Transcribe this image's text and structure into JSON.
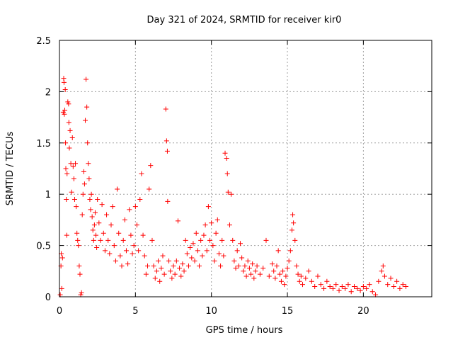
{
  "chart_data": {
    "type": "scatter",
    "title": "Day 321 of 2024, SRMTID for receiver kir0",
    "xlabel": "GPS time / hours",
    "ylabel": "SRMTID / TECUs",
    "xlim": [
      0,
      24.5
    ],
    "ylim": [
      0,
      2.5
    ],
    "x_ticks": [
      0,
      5,
      10,
      15,
      20
    ],
    "x_tick_labels": [
      "0",
      "5",
      "10",
      "15",
      "20"
    ],
    "y_ticks": [
      0,
      0.5,
      1,
      1.5,
      2,
      2.5
    ],
    "y_tick_labels": [
      "0",
      "0.5",
      "1",
      "1.5",
      "2",
      "2.5"
    ],
    "grid": true,
    "marker": "+",
    "color": "#ff0000",
    "series": [
      {
        "name": "SRMTID",
        "points": [
          [
            0.05,
            0.02
          ],
          [
            0.1,
            0.3
          ],
          [
            0.12,
            0.42
          ],
          [
            0.15,
            0.08
          ],
          [
            0.2,
            0.38
          ],
          [
            0.25,
            1.8
          ],
          [
            0.28,
            2.13
          ],
          [
            0.3,
            2.09
          ],
          [
            0.32,
            1.78
          ],
          [
            0.35,
            1.82
          ],
          [
            0.38,
            2.02
          ],
          [
            0.4,
            1.5
          ],
          [
            0.42,
            1.25
          ],
          [
            0.45,
            0.95
          ],
          [
            0.48,
            0.6
          ],
          [
            0.5,
            1.2
          ],
          [
            0.55,
            1.9
          ],
          [
            0.6,
            1.88
          ],
          [
            0.62,
            1.7
          ],
          [
            0.65,
            1.45
          ],
          [
            0.7,
            1.62
          ],
          [
            0.75,
            1.3
          ],
          [
            0.8,
            1.02
          ],
          [
            0.85,
            1.55
          ],
          [
            0.9,
            1.27
          ],
          [
            0.95,
            1.15
          ],
          [
            1.0,
            0.95
          ],
          [
            1.05,
            1.3
          ],
          [
            1.1,
            0.88
          ],
          [
            1.15,
            0.62
          ],
          [
            1.2,
            0.55
          ],
          [
            1.25,
            0.5
          ],
          [
            1.3,
            0.3
          ],
          [
            1.35,
            0.22
          ],
          [
            1.4,
            0.02
          ],
          [
            1.45,
            0.04
          ],
          [
            1.5,
            0.8
          ],
          [
            1.55,
            1.0
          ],
          [
            1.6,
            1.22
          ],
          [
            1.65,
            1.1
          ],
          [
            1.7,
            1.72
          ],
          [
            1.75,
            2.12
          ],
          [
            1.8,
            1.85
          ],
          [
            1.85,
            1.5
          ],
          [
            1.9,
            1.3
          ],
          [
            1.95,
            1.15
          ],
          [
            2.0,
            0.95
          ],
          [
            2.05,
            0.85
          ],
          [
            2.1,
            1.0
          ],
          [
            2.15,
            0.78
          ],
          [
            2.2,
            0.65
          ],
          [
            2.25,
            0.55
          ],
          [
            2.3,
            0.7
          ],
          [
            2.35,
            0.82
          ],
          [
            2.4,
            0.6
          ],
          [
            2.45,
            0.48
          ],
          [
            2.5,
            0.95
          ],
          [
            2.6,
            0.72
          ],
          [
            2.7,
            0.55
          ],
          [
            2.8,
            0.9
          ],
          [
            2.9,
            0.62
          ],
          [
            3.0,
            0.45
          ],
          [
            3.1,
            0.8
          ],
          [
            3.2,
            0.55
          ],
          [
            3.3,
            0.42
          ],
          [
            3.4,
            0.7
          ],
          [
            3.5,
            0.88
          ],
          [
            3.6,
            0.5
          ],
          [
            3.7,
            0.35
          ],
          [
            3.8,
            1.05
          ],
          [
            3.9,
            0.62
          ],
          [
            4.0,
            0.4
          ],
          [
            4.1,
            0.3
          ],
          [
            4.2,
            0.55
          ],
          [
            4.3,
            0.75
          ],
          [
            4.4,
            0.45
          ],
          [
            4.5,
            0.32
          ],
          [
            4.6,
            0.85
          ],
          [
            4.7,
            0.6
          ],
          [
            4.8,
            0.42
          ],
          [
            4.9,
            0.5
          ],
          [
            5.0,
            0.88
          ],
          [
            5.1,
            0.7
          ],
          [
            5.2,
            0.45
          ],
          [
            5.3,
            0.95
          ],
          [
            5.4,
            1.2
          ],
          [
            5.5,
            0.6
          ],
          [
            5.6,
            0.4
          ],
          [
            5.7,
            0.22
          ],
          [
            5.8,
            0.3
          ],
          [
            5.9,
            1.05
          ],
          [
            6.0,
            1.28
          ],
          [
            6.1,
            0.55
          ],
          [
            6.2,
            0.3
          ],
          [
            6.3,
            0.18
          ],
          [
            6.4,
            0.25
          ],
          [
            6.5,
            0.35
          ],
          [
            6.6,
            0.15
          ],
          [
            6.7,
            0.28
          ],
          [
            6.8,
            0.4
          ],
          [
            6.9,
            0.22
          ],
          [
            7.0,
            1.83
          ],
          [
            7.05,
            1.52
          ],
          [
            7.1,
            1.42
          ],
          [
            7.12,
            0.93
          ],
          [
            7.2,
            0.35
          ],
          [
            7.3,
            0.25
          ],
          [
            7.4,
            0.18
          ],
          [
            7.5,
            0.3
          ],
          [
            7.6,
            0.22
          ],
          [
            7.7,
            0.35
          ],
          [
            7.8,
            0.74
          ],
          [
            7.9,
            0.28
          ],
          [
            8.0,
            0.2
          ],
          [
            8.1,
            0.32
          ],
          [
            8.2,
            0.25
          ],
          [
            8.3,
            0.55
          ],
          [
            8.4,
            0.42
          ],
          [
            8.5,
            0.3
          ],
          [
            8.6,
            0.48
          ],
          [
            8.7,
            0.38
          ],
          [
            8.8,
            0.52
          ],
          [
            8.9,
            0.35
          ],
          [
            9.0,
            0.62
          ],
          [
            9.1,
            0.45
          ],
          [
            9.2,
            0.3
          ],
          [
            9.3,
            0.55
          ],
          [
            9.4,
            0.4
          ],
          [
            9.5,
            0.6
          ],
          [
            9.6,
            0.7
          ],
          [
            9.7,
            0.45
          ],
          [
            9.8,
            0.88
          ],
          [
            9.9,
            0.55
          ],
          [
            10.0,
            0.72
          ],
          [
            10.1,
            0.5
          ],
          [
            10.2,
            0.35
          ],
          [
            10.3,
            0.62
          ],
          [
            10.4,
            0.75
          ],
          [
            10.5,
            0.42
          ],
          [
            10.6,
            0.3
          ],
          [
            10.7,
            0.55
          ],
          [
            10.8,
            0.4
          ],
          [
            10.9,
            1.4
          ],
          [
            11.0,
            1.35
          ],
          [
            11.05,
            1.2
          ],
          [
            11.1,
            1.02
          ],
          [
            11.2,
            0.7
          ],
          [
            11.3,
            1.0
          ],
          [
            11.4,
            0.55
          ],
          [
            11.5,
            0.35
          ],
          [
            11.6,
            0.28
          ],
          [
            11.7,
            0.45
          ],
          [
            11.8,
            0.3
          ],
          [
            11.9,
            0.52
          ],
          [
            12.0,
            0.38
          ],
          [
            12.1,
            0.25
          ],
          [
            12.2,
            0.3
          ],
          [
            12.3,
            0.2
          ],
          [
            12.4,
            0.35
          ],
          [
            12.5,
            0.28
          ],
          [
            12.6,
            0.22
          ],
          [
            12.7,
            0.32
          ],
          [
            12.8,
            0.18
          ],
          [
            12.9,
            0.25
          ],
          [
            13.0,
            0.3
          ],
          [
            13.2,
            0.22
          ],
          [
            13.4,
            0.28
          ],
          [
            13.6,
            0.55
          ],
          [
            13.8,
            0.2
          ],
          [
            14.0,
            0.32
          ],
          [
            14.1,
            0.25
          ],
          [
            14.2,
            0.18
          ],
          [
            14.3,
            0.3
          ],
          [
            14.4,
            0.45
          ],
          [
            14.5,
            0.22
          ],
          [
            14.6,
            0.15
          ],
          [
            14.7,
            0.25
          ],
          [
            14.8,
            0.12
          ],
          [
            14.9,
            0.2
          ],
          [
            15.0,
            0.28
          ],
          [
            15.1,
            0.35
          ],
          [
            15.2,
            0.45
          ],
          [
            15.3,
            0.65
          ],
          [
            15.35,
            0.8
          ],
          [
            15.4,
            0.72
          ],
          [
            15.5,
            0.55
          ],
          [
            15.6,
            0.3
          ],
          [
            15.7,
            0.22
          ],
          [
            15.8,
            0.15
          ],
          [
            15.9,
            0.2
          ],
          [
            16.0,
            0.12
          ],
          [
            16.2,
            0.18
          ],
          [
            16.4,
            0.25
          ],
          [
            16.6,
            0.15
          ],
          [
            16.8,
            0.1
          ],
          [
            17.0,
            0.2
          ],
          [
            17.2,
            0.12
          ],
          [
            17.4,
            0.08
          ],
          [
            17.6,
            0.15
          ],
          [
            17.8,
            0.1
          ],
          [
            18.0,
            0.08
          ],
          [
            18.2,
            0.12
          ],
          [
            18.4,
            0.06
          ],
          [
            18.6,
            0.1
          ],
          [
            18.8,
            0.08
          ],
          [
            19.0,
            0.12
          ],
          [
            19.2,
            0.05
          ],
          [
            19.4,
            0.1
          ],
          [
            19.6,
            0.08
          ],
          [
            19.8,
            0.06
          ],
          [
            20.0,
            0.1
          ],
          [
            20.2,
            0.08
          ],
          [
            20.4,
            0.12
          ],
          [
            20.6,
            0.05
          ],
          [
            20.8,
            0.02
          ],
          [
            21.0,
            0.15
          ],
          [
            21.2,
            0.25
          ],
          [
            21.3,
            0.3
          ],
          [
            21.4,
            0.2
          ],
          [
            21.6,
            0.12
          ],
          [
            21.8,
            0.18
          ],
          [
            22.0,
            0.1
          ],
          [
            22.2,
            0.15
          ],
          [
            22.4,
            0.08
          ],
          [
            22.6,
            0.12
          ],
          [
            22.8,
            0.1
          ]
        ]
      }
    ]
  }
}
